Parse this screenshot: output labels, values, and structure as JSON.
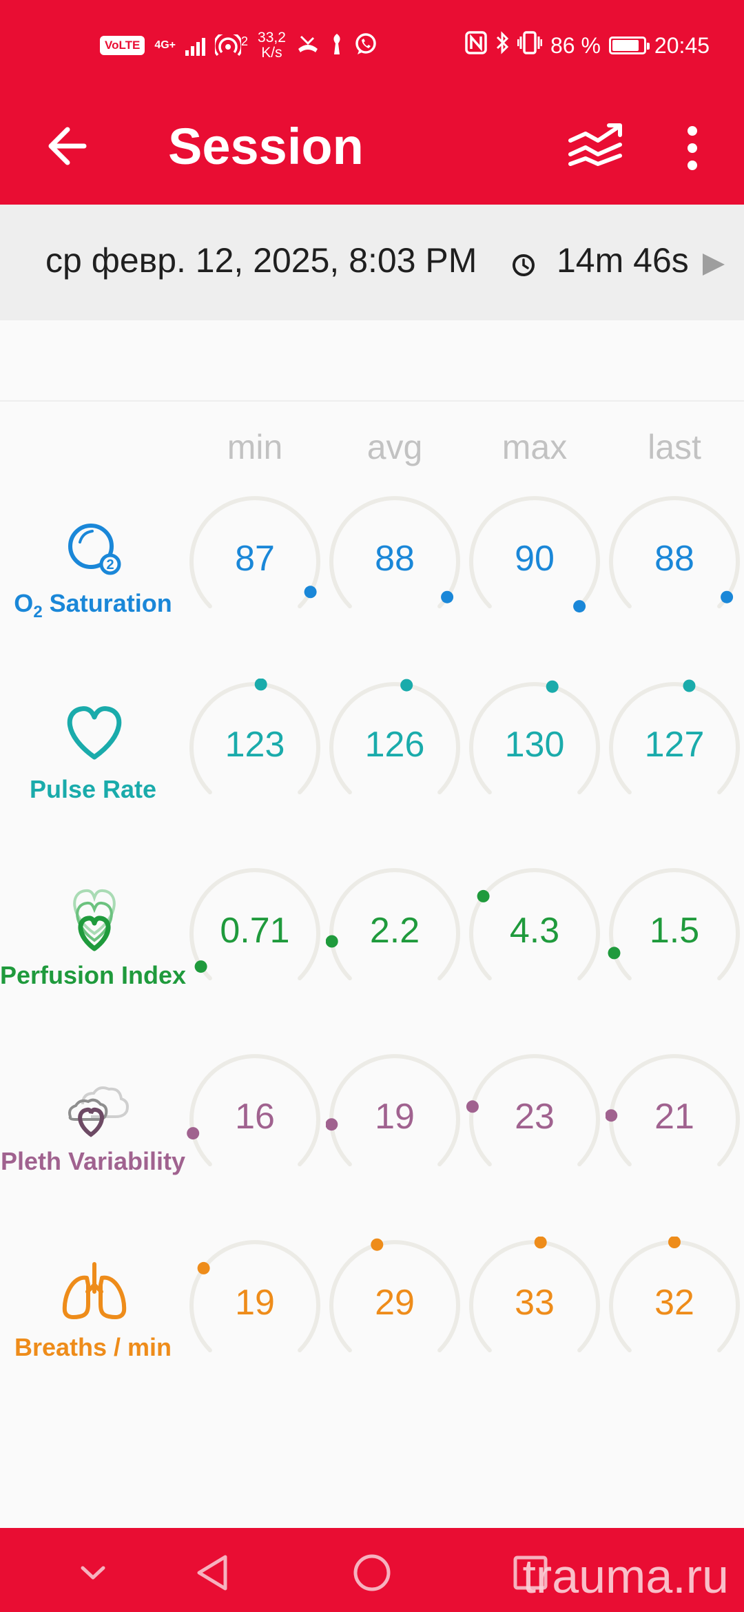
{
  "status_bar": {
    "volte": "VoLTE",
    "network": "4G+",
    "hotspot_count": "2",
    "speed_value": "33,2",
    "speed_unit": "K/s",
    "battery_percent": "86 %",
    "time": "20:45",
    "battery_level": 0.86,
    "icons": [
      "volte-icon",
      "signal-icon",
      "hotspot-icon",
      "missed-call-icon",
      "tool-icon",
      "whatsapp-icon",
      "nfc-icon",
      "bluetooth-icon",
      "vibrate-icon",
      "battery-icon"
    ]
  },
  "app_bar": {
    "title": "Session",
    "back_icon": "arrow-left-icon",
    "trends_icon": "trends-icon",
    "menu_icon": "more-vert-icon"
  },
  "session": {
    "date": "ср февр. 12, 2025, 8:03 PM",
    "duration": "14m 46s"
  },
  "columns": [
    "min",
    "avg",
    "max",
    "last"
  ],
  "colors": {
    "app_red": "#e90d33",
    "spo2": "#1a87d8",
    "pulse": "#1aabab",
    "perfusion": "#1f9a3c",
    "pleth": "#a0628f",
    "breaths": "#ee8c1a",
    "ring": "#ecebe6"
  },
  "metrics": [
    {
      "key": "spo2",
      "label_main": "O",
      "label_sub": "2",
      "label_rest": " Saturation",
      "icon": "spo2-bubble-icon",
      "color": "#1a87d8",
      "values": [
        {
          "text": "87",
          "indicator": 0.94
        },
        {
          "text": "88",
          "indicator": 0.96
        },
        {
          "text": "90",
          "indicator": 1.0
        },
        {
          "text": "88",
          "indicator": 0.96
        }
      ]
    },
    {
      "key": "pulse",
      "label": "Pulse Rate",
      "icon": "heart-outline-icon",
      "color": "#1aabab",
      "values": [
        {
          "text": "123",
          "indicator": 0.52
        },
        {
          "text": "126",
          "indicator": 0.54
        },
        {
          "text": "130",
          "indicator": 0.56
        },
        {
          "text": "127",
          "indicator": 0.55
        }
      ]
    },
    {
      "key": "perfusion",
      "label": "Perfusion Index",
      "icon": "layered-hearts-icon",
      "color": "#1f9a3c",
      "values": [
        {
          "text": "0.71",
          "indicator": 0.05
        },
        {
          "text": "2.2",
          "indicator": 0.14
        },
        {
          "text": "4.3",
          "indicator": 0.3
        },
        {
          "text": "1.5",
          "indicator": 0.1
        }
      ]
    },
    {
      "key": "pleth",
      "label": "Pleth Variability",
      "icon": "clouds-heart-icon",
      "color": "#a0628f",
      "values": [
        {
          "text": "16",
          "indicator": 0.12
        },
        {
          "text": "19",
          "indicator": 0.15
        },
        {
          "text": "23",
          "indicator": 0.21
        },
        {
          "text": "21",
          "indicator": 0.18
        }
      ]
    },
    {
      "key": "breaths",
      "label": "Breaths / min",
      "icon": "lungs-icon",
      "color": "#ee8c1a",
      "values": [
        {
          "text": "19",
          "indicator": 0.3
        },
        {
          "text": "29",
          "indicator": 0.44
        },
        {
          "text": "33",
          "indicator": 0.52
        },
        {
          "text": "32",
          "indicator": 0.5
        }
      ]
    }
  ],
  "nav_bar": {
    "icons": [
      "chevron-down-icon",
      "back-triangle-icon",
      "home-circle-icon",
      "recents-square-icon"
    ],
    "watermark": "trauma.ru"
  }
}
